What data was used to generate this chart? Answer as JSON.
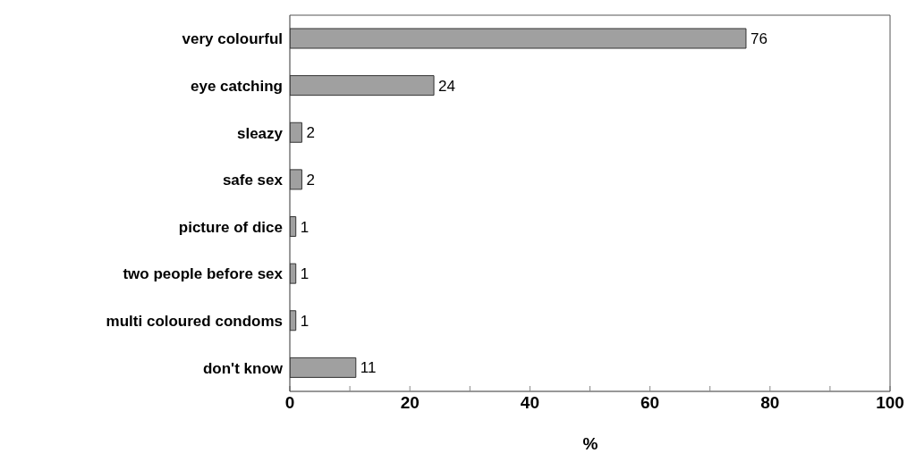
{
  "chart_data": {
    "type": "bar",
    "orientation": "horizontal",
    "xlabel": "%",
    "categories": [
      "very colourful",
      "eye catching",
      "sleazy",
      "safe sex",
      "picture of dice",
      "two people before sex",
      "multi coloured condoms",
      "don't know"
    ],
    "values": [
      76,
      24,
      2,
      2,
      1,
      1,
      1,
      11
    ],
    "color": "#a0a0a0",
    "data_labels": true,
    "grid": false,
    "xlim": [
      0,
      100
    ],
    "xticks": [
      0,
      {
        "value": 10,
        "label": null
      },
      20,
      {
        "value": 30,
        "label": null
      },
      40,
      {
        "value": 50,
        "label": null
      },
      60,
      {
        "value": 70,
        "label": null
      },
      80,
      {
        "value": 90,
        "label": null
      },
      100
    ]
  }
}
